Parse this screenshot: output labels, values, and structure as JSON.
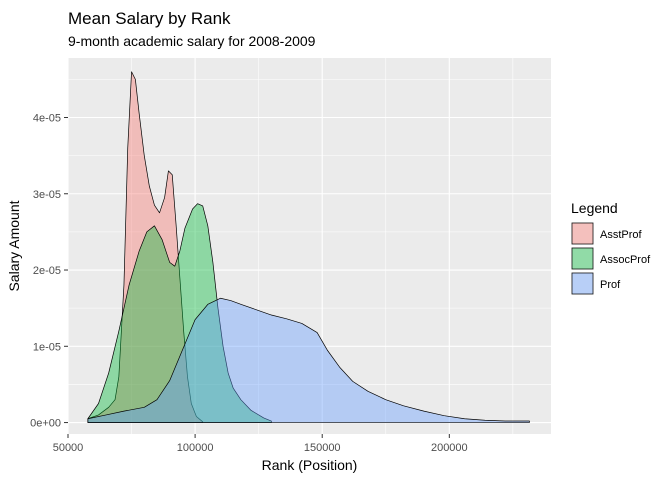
{
  "chart_data": {
    "type": "area",
    "title": "Mean Salary by Rank",
    "subtitle": "9-month academic salary for 2008-2009",
    "xlabel": "Rank (Position)",
    "ylabel": "Salary Amount",
    "xlim": [
      50000,
      240000
    ],
    "ylim": [
      -1.5e-06,
      4.78e-05
    ],
    "x_ticks": [
      {
        "value": 50000,
        "label": "50000"
      },
      {
        "value": 100000,
        "label": "100000"
      },
      {
        "value": 150000,
        "label": "150000"
      },
      {
        "value": 200000,
        "label": "200000"
      }
    ],
    "y_ticks": [
      {
        "value": 0,
        "label": "0e+00"
      },
      {
        "value": 1e-05,
        "label": "1e-05"
      },
      {
        "value": 2e-05,
        "label": "2e-05"
      },
      {
        "value": 3e-05,
        "label": "3e-05"
      },
      {
        "value": 4e-05,
        "label": "4e-05"
      }
    ],
    "grid": true,
    "legend": {
      "title": "Legend",
      "position": "right"
    },
    "series": [
      {
        "name": "AsstProf",
        "color": "#F8766D",
        "points": [
          [
            57800,
            5e-07
          ],
          [
            62000,
            1e-06
          ],
          [
            66000,
            2e-06
          ],
          [
            68500,
            3e-06
          ],
          [
            70000,
            6e-06
          ],
          [
            72000,
            1.8e-05
          ],
          [
            73500,
            3.6e-05
          ],
          [
            75000,
            4.6e-05
          ],
          [
            76500,
            4.5e-05
          ],
          [
            78000,
            4.05e-05
          ],
          [
            80000,
            3.5e-05
          ],
          [
            82000,
            3.1e-05
          ],
          [
            84000,
            2.85e-05
          ],
          [
            86000,
            2.75e-05
          ],
          [
            88000,
            2.95e-05
          ],
          [
            89500,
            3.3e-05
          ],
          [
            91000,
            3.25e-05
          ],
          [
            92500,
            2.6e-05
          ],
          [
            94000,
            1.9e-05
          ],
          [
            95500,
            1.2e-05
          ],
          [
            97000,
            6e-06
          ],
          [
            98500,
            2.5e-06
          ],
          [
            100500,
            8e-07
          ],
          [
            103000,
            1e-07
          ]
        ]
      },
      {
        "name": "AssocProf",
        "color": "#00BA38",
        "points": [
          [
            57800,
            5e-07
          ],
          [
            62000,
            2.5e-06
          ],
          [
            66000,
            6.5e-06
          ],
          [
            70000,
            1.2e-05
          ],
          [
            74000,
            1.8e-05
          ],
          [
            78000,
            2.25e-05
          ],
          [
            81000,
            2.5e-05
          ],
          [
            84000,
            2.58e-05
          ],
          [
            87000,
            2.4e-05
          ],
          [
            90000,
            2.1e-05
          ],
          [
            92000,
            2.05e-05
          ],
          [
            94000,
            2.25e-05
          ],
          [
            96000,
            2.55e-05
          ],
          [
            99000,
            2.8e-05
          ],
          [
            101000,
            2.87e-05
          ],
          [
            103000,
            2.84e-05
          ],
          [
            105000,
            2.58e-05
          ],
          [
            107000,
            2.1e-05
          ],
          [
            109000,
            1.5e-05
          ],
          [
            111000,
            1e-05
          ],
          [
            113000,
            6.5e-06
          ],
          [
            115000,
            4.5e-06
          ],
          [
            118000,
            3e-06
          ],
          [
            122000,
            1.6e-06
          ],
          [
            127000,
            6e-07
          ],
          [
            130000,
            2e-07
          ]
        ]
      },
      {
        "name": "Prof",
        "color": "#619CFF",
        "points": [
          [
            57800,
            5e-07
          ],
          [
            65000,
            1e-06
          ],
          [
            72000,
            1.5e-06
          ],
          [
            80000,
            2e-06
          ],
          [
            85000,
            3e-06
          ],
          [
            90000,
            5.5e-06
          ],
          [
            95000,
            9.5e-06
          ],
          [
            100000,
            1.35e-05
          ],
          [
            105000,
            1.55e-05
          ],
          [
            110000,
            1.63e-05
          ],
          [
            114000,
            1.6e-05
          ],
          [
            118000,
            1.55e-05
          ],
          [
            124000,
            1.48e-05
          ],
          [
            130000,
            1.41e-05
          ],
          [
            136000,
            1.36e-05
          ],
          [
            142000,
            1.3e-05
          ],
          [
            148000,
            1.18e-05
          ],
          [
            152000,
            9.5e-06
          ],
          [
            157000,
            7.2e-06
          ],
          [
            162000,
            5.4e-06
          ],
          [
            168000,
            4.1e-06
          ],
          [
            175000,
            3e-06
          ],
          [
            182000,
            2.2e-06
          ],
          [
            190000,
            1.5e-06
          ],
          [
            198000,
            9e-07
          ],
          [
            206000,
            5e-07
          ],
          [
            214000,
            3e-07
          ],
          [
            222000,
            2e-07
          ],
          [
            231500,
            2e-07
          ]
        ]
      }
    ]
  }
}
